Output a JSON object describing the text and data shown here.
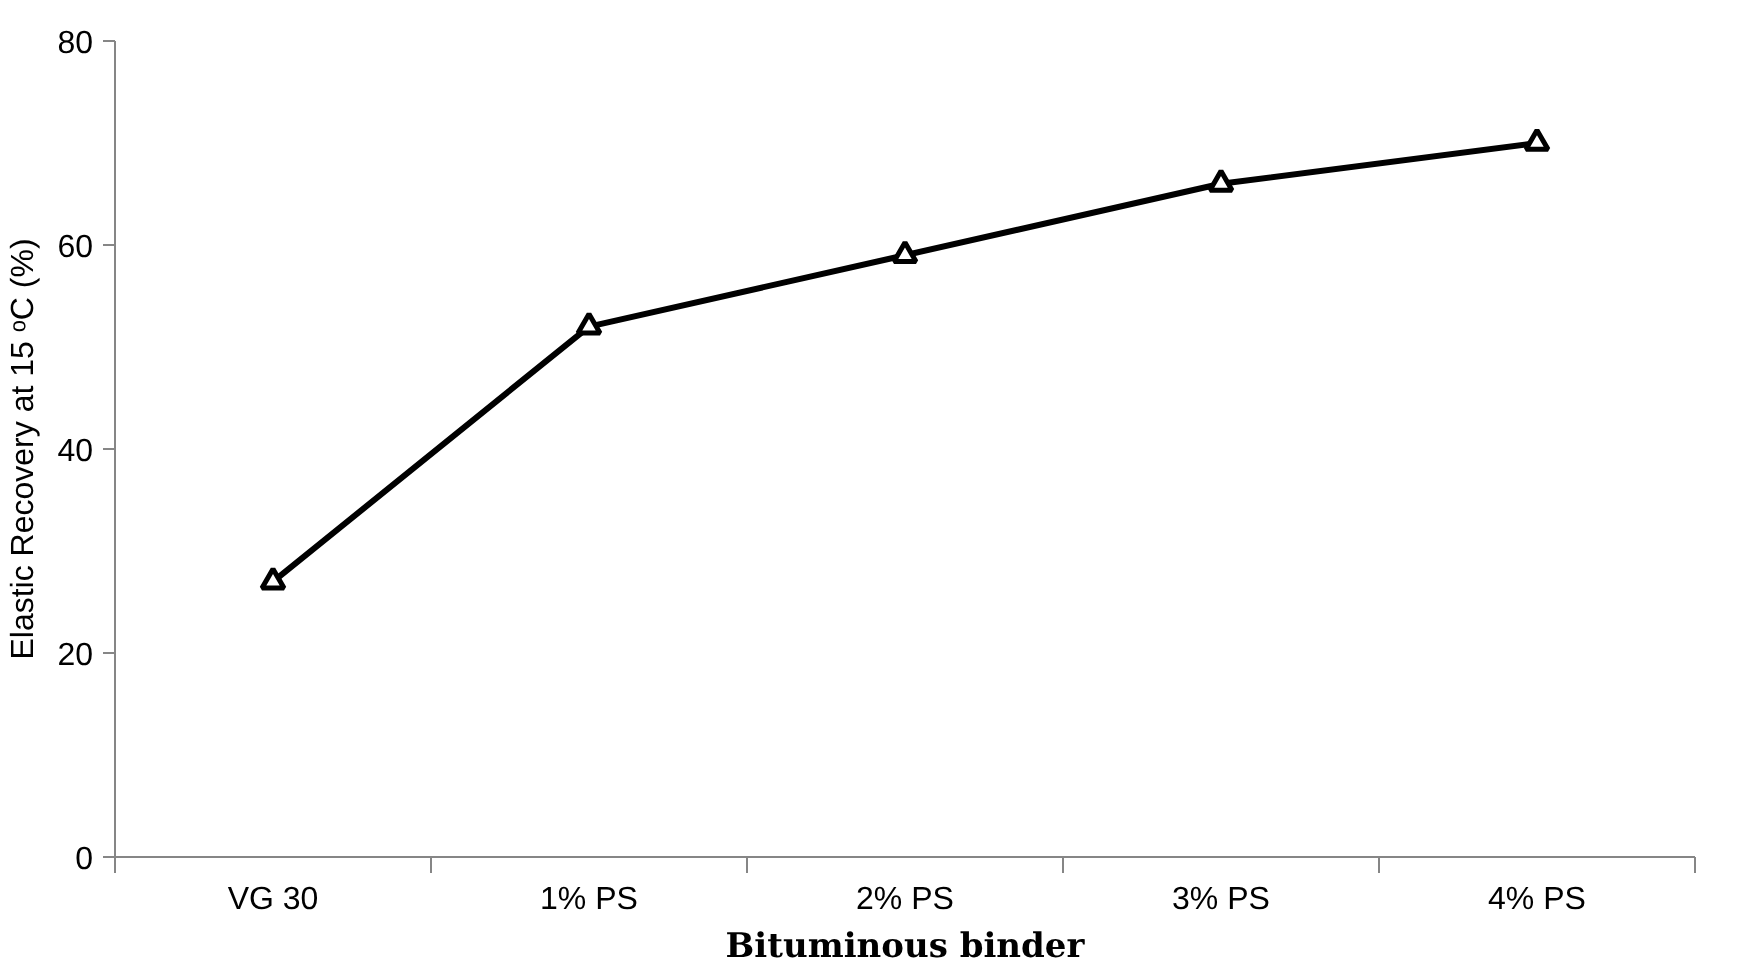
{
  "chart_data": {
    "type": "line",
    "xlabel": "Bituminous binder",
    "ylabel": "Elastic Recovery at 15 ᵒC (%)",
    "categories": [
      "VG 30",
      "1% PS",
      "2% PS",
      "3% PS",
      "4% PS"
    ],
    "series": [
      {
        "color": "#000000",
        "values": [
          27,
          52,
          59,
          66,
          70
        ]
      }
    ],
    "ylim": [
      0,
      80
    ],
    "yticks": [
      0,
      20,
      40,
      60,
      80
    ],
    "grid": false,
    "marker": "triangle",
    "line_style": "solid"
  }
}
